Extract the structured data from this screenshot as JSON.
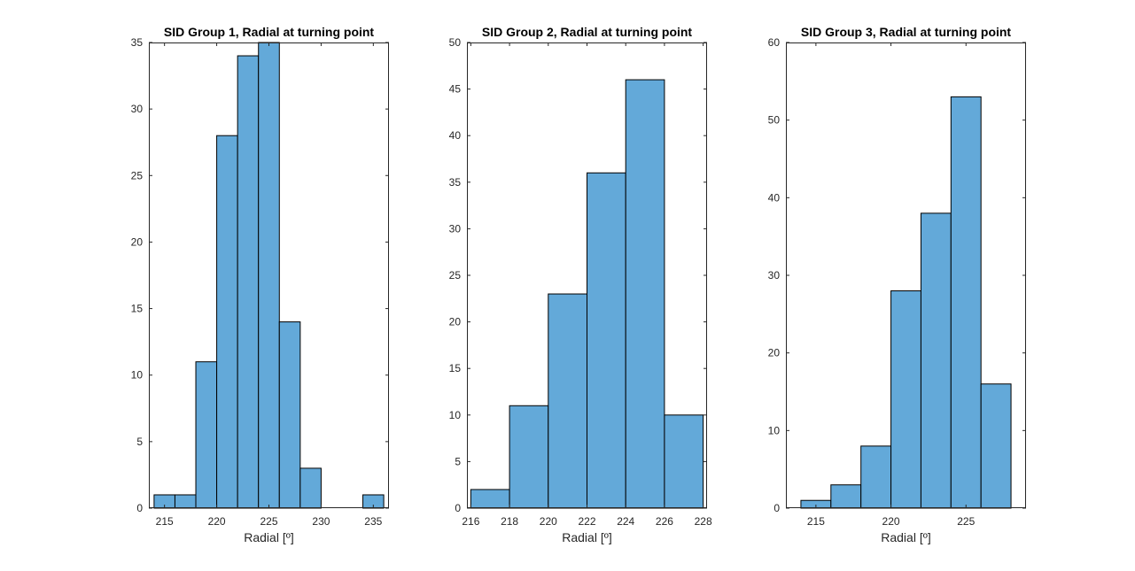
{
  "colors": {
    "bar_fill": "#63a9d9",
    "bar_edge": "#000000",
    "axis": "#262626",
    "background": "#ffffff"
  },
  "chart_data": [
    {
      "type": "bar",
      "title": "SID Group 1, Radial at turning point",
      "xlabel": "Radial [º]",
      "ylabel": "",
      "xlim": [
        213.5,
        236.5
      ],
      "ylim": [
        0,
        35
      ],
      "xticks": [
        215,
        220,
        225,
        230,
        235
      ],
      "yticks": [
        0,
        5,
        10,
        15,
        20,
        25,
        30,
        35
      ],
      "xtick_labels": [
        "215",
        "220",
        "225",
        "230",
        "235"
      ],
      "ytick_labels": [
        "0",
        "5",
        "10",
        "15",
        "20",
        "25",
        "30",
        "35"
      ],
      "bin_edges": [
        214,
        216,
        218,
        220,
        222,
        224,
        226,
        228,
        230,
        232,
        234,
        236
      ],
      "values": [
        1,
        1,
        11,
        28,
        34,
        35,
        14,
        3,
        0,
        0,
        1
      ],
      "grid": false
    },
    {
      "type": "bar",
      "title": "SID Group 2, Radial at turning point",
      "xlabel": "Radial [º]",
      "ylabel": "",
      "xlim": [
        215.8,
        228.2
      ],
      "ylim": [
        0,
        50
      ],
      "xticks": [
        216,
        218,
        220,
        222,
        224,
        226,
        228
      ],
      "yticks": [
        0,
        5,
        10,
        15,
        20,
        25,
        30,
        35,
        40,
        45,
        50
      ],
      "xtick_labels": [
        "216",
        "218",
        "220",
        "222",
        "224",
        "226",
        "228"
      ],
      "ytick_labels": [
        "0",
        "5",
        "10",
        "15",
        "20",
        "25",
        "30",
        "35",
        "40",
        "45",
        "50"
      ],
      "bin_edges": [
        216,
        218,
        220,
        222,
        224,
        226,
        228
      ],
      "values": [
        2,
        11,
        23,
        36,
        46,
        10
      ],
      "grid": false
    },
    {
      "type": "bar",
      "title": "SID Group 3, Radial at turning point",
      "xlabel": "Radial [º]",
      "ylabel": "",
      "xlim": [
        213,
        229
      ],
      "ylim": [
        0,
        60
      ],
      "xticks": [
        215,
        220,
        225
      ],
      "yticks": [
        0,
        10,
        20,
        30,
        40,
        50,
        60
      ],
      "xtick_labels": [
        "215",
        "220",
        "225"
      ],
      "ytick_labels": [
        "0",
        "10",
        "20",
        "30",
        "40",
        "50",
        "60"
      ],
      "bin_edges": [
        214,
        216,
        218,
        220,
        222,
        224,
        226,
        228
      ],
      "values": [
        1,
        3,
        8,
        28,
        38,
        53,
        16
      ],
      "grid": false
    }
  ]
}
